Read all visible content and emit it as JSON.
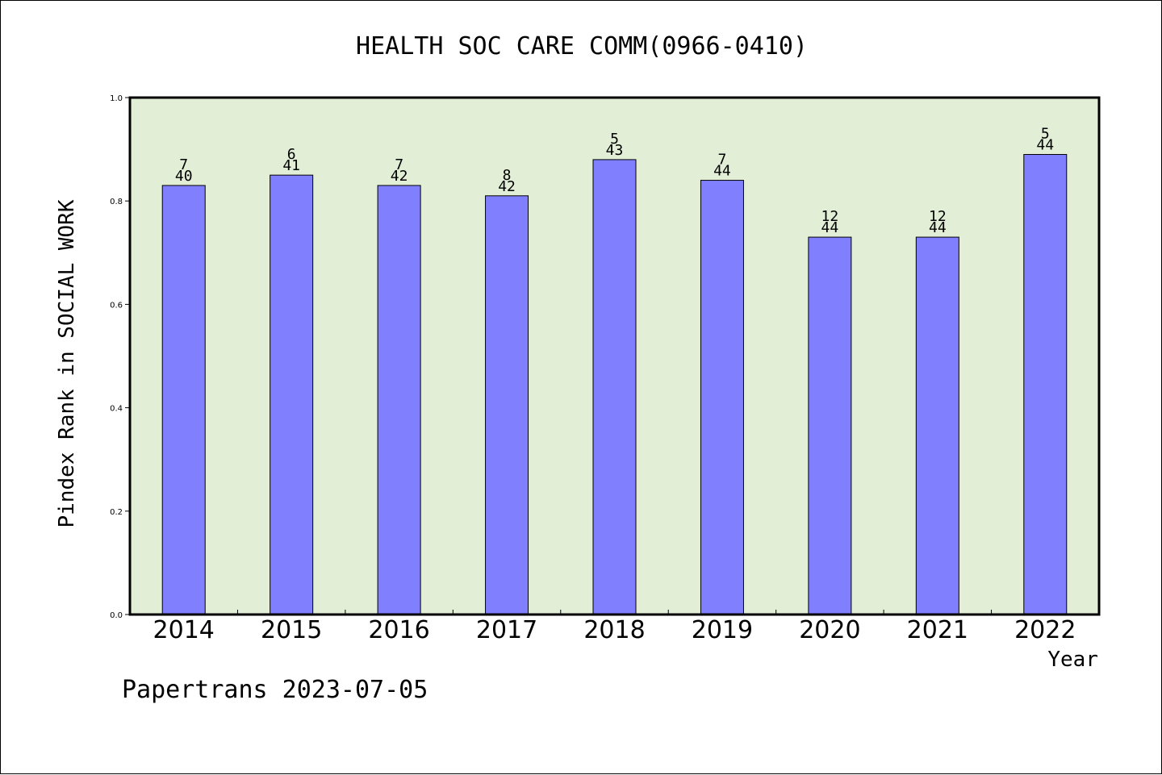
{
  "chart_data": {
    "type": "bar",
    "title": "HEALTH SOC CARE COMM(0966-0410)",
    "xlabel": "Year",
    "ylabel": "Pindex Rank in SOCIAL WORK",
    "ylim": [
      0,
      1.0
    ],
    "yticks": [
      "0.0",
      "0.2",
      "0.4",
      "0.6",
      "0.8",
      "1.0"
    ],
    "categories": [
      "2014",
      "2015",
      "2016",
      "2017",
      "2018",
      "2019",
      "2020",
      "2021",
      "2022"
    ],
    "values": [
      0.83,
      0.85,
      0.83,
      0.81,
      0.88,
      0.84,
      0.73,
      0.73,
      0.89
    ],
    "rank_labels": [
      "7",
      "6",
      "7",
      "8",
      "5",
      "7",
      "12",
      "12",
      "5"
    ],
    "total_labels": [
      "40",
      "41",
      "42",
      "42",
      "43",
      "44",
      "44",
      "44",
      "44"
    ],
    "bar_color": "#8080ff",
    "plot_background": "#e2efd6",
    "grid": false
  },
  "footer": "Papertrans 2023-07-05"
}
